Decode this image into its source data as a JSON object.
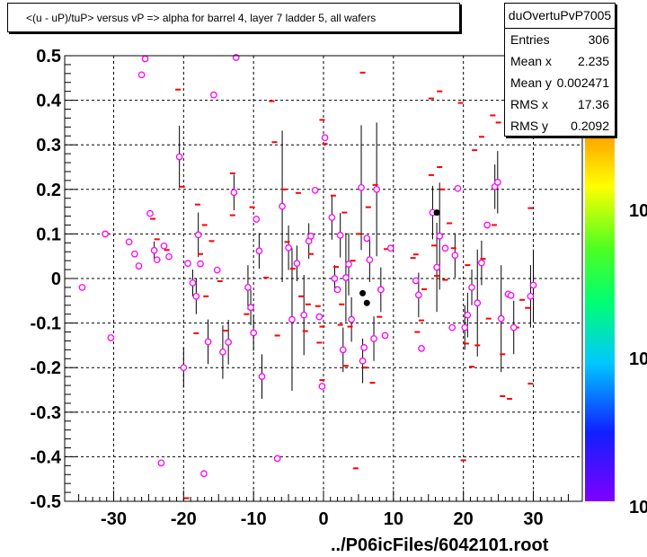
{
  "header": {
    "title": "<(u - uP)/tuP> versus   vP => alpha for barrel 4, layer 7 ladder 5, all wafers"
  },
  "stats": {
    "name": "duOvertuPvP7005",
    "rows": [
      {
        "label": "Entries",
        "value": "306"
      },
      {
        "label": "Mean x",
        "value": "2.235"
      },
      {
        "label": "Mean y",
        "value": "0.002471"
      },
      {
        "label": "RMS x",
        "value": "17.36"
      },
      {
        "label": "RMS y",
        "value": "0.2092"
      }
    ]
  },
  "footer": {
    "text": "../P06icFiles/6042101.root"
  },
  "colorbar": {
    "labels": [
      "10",
      "10",
      "10"
    ]
  },
  "chart_data": {
    "type": "scatter",
    "xlim": [
      -37,
      37
    ],
    "ylim": [
      -0.5,
      0.5
    ],
    "x_ticks": [
      -30,
      -20,
      -10,
      0,
      10,
      20,
      30
    ],
    "x_tick_labels": [
      "-30",
      "-20",
      "-10",
      "0",
      "10",
      "20",
      "30"
    ],
    "y_ticks": [
      -0.5,
      -0.4,
      -0.3,
      -0.2,
      -0.1,
      0,
      0.1,
      0.2,
      0.3,
      0.4,
      0.5
    ],
    "y_tick_labels": [
      "-0.5",
      "-0.4",
      "-0.3",
      "-0.2",
      "-0.1",
      "0",
      "0.1",
      "0.2",
      "0.3",
      "0.4",
      "0.5"
    ],
    "grid": true,
    "excluded_band": [
      -0.375,
      -0.245
    ],
    "colors": {
      "profile": "#ff00ff",
      "bins": "#ff0000",
      "highlight": "#000000",
      "band": "#f0f0f0"
    },
    "profile_points": [
      {
        "x": -34.5,
        "y": -0.02
      },
      {
        "x": -31.2,
        "y": 0.1
      },
      {
        "x": -30.4,
        "y": -0.133
      },
      {
        "x": -27.8,
        "y": 0.082
      },
      {
        "x": -27.0,
        "y": 0.055
      },
      {
        "x": -26.4,
        "y": 0.028
      },
      {
        "x": -26.0,
        "y": 0.457
      },
      {
        "x": -25.5,
        "y": 0.493
      },
      {
        "x": -24.8,
        "y": 0.146
      },
      {
        "x": -24.2,
        "y": 0.063,
        "err": 0.02
      },
      {
        "x": -23.8,
        "y": 0.042
      },
      {
        "x": -23.2,
        "y": -0.414
      },
      {
        "x": -22.8,
        "y": 0.073
      },
      {
        "x": -22.1,
        "y": 0.049
      },
      {
        "x": -20.6,
        "y": 0.273,
        "err": 0.07
      },
      {
        "x": -20.0,
        "y": -0.2,
        "err": 0.045
      },
      {
        "x": -19.4,
        "y": 0.034
      },
      {
        "x": -18.7,
        "y": -0.01,
        "err": 0.03
      },
      {
        "x": -18.2,
        "y": -0.04,
        "err": 0.04
      },
      {
        "x": -17.9,
        "y": 0.098,
        "err": 0.05
      },
      {
        "x": -17.6,
        "y": 0.033
      },
      {
        "x": -17.1,
        "y": -0.438
      },
      {
        "x": -16.5,
        "y": -0.142,
        "err": 0.05
      },
      {
        "x": -15.7,
        "y": 0.412
      },
      {
        "x": -15.2,
        "y": 0.019
      },
      {
        "x": -14.4,
        "y": -0.165,
        "err": 0.06
      },
      {
        "x": -13.6,
        "y": -0.143,
        "err": 0.05
      },
      {
        "x": -12.8,
        "y": 0.193,
        "err": 0.04
      },
      {
        "x": -12.5,
        "y": 0.496
      },
      {
        "x": -10.8,
        "y": -0.02,
        "err": 0.05
      },
      {
        "x": -10.4,
        "y": -0.065,
        "err": 0.04
      },
      {
        "x": -10.0,
        "y": -0.122,
        "err": 0.04
      },
      {
        "x": -9.6,
        "y": 0.133
      },
      {
        "x": -9.2,
        "y": 0.062,
        "err": 0.04
      },
      {
        "x": -8.8,
        "y": -0.22,
        "err": 0.05
      },
      {
        "x": -6.6,
        "y": -0.404
      },
      {
        "x": -5.9,
        "y": 0.162,
        "err": 0.17
      },
      {
        "x": -5.0,
        "y": 0.069,
        "err": 0.05
      },
      {
        "x": -4.5,
        "y": -0.092,
        "err": 0.16
      },
      {
        "x": -3.8,
        "y": 0.034,
        "err": 0.04
      },
      {
        "x": -2.8,
        "y": -0.082,
        "err": 0.09
      },
      {
        "x": -2.1,
        "y": 0.084,
        "err": 0.04
      },
      {
        "x": -1.8,
        "y": 0.095
      },
      {
        "x": -1.2,
        "y": 0.198
      },
      {
        "x": -0.6,
        "y": -0.086
      },
      {
        "x": -0.2,
        "y": -0.242
      },
      {
        "x": 0.2,
        "y": 0.316
      },
      {
        "x": 1.2,
        "y": 0.137,
        "err": 0.05
      },
      {
        "x": 1.6,
        "y": 0.0,
        "err": 0.03
      },
      {
        "x": 2.0,
        "y": -0.025
      },
      {
        "x": 2.4,
        "y": 0.097,
        "err": 0.05
      },
      {
        "x": 2.8,
        "y": -0.16,
        "err": 0.05
      },
      {
        "x": 3.2,
        "y": 0.002,
        "err": 0.1
      },
      {
        "x": 3.6,
        "y": 0.032,
        "err": 0.07
      },
      {
        "x": 4.0,
        "y": -0.092,
        "err": 0.05
      },
      {
        "x": 5.4,
        "y": 0.204,
        "err": 0.14
      },
      {
        "x": 5.6,
        "y": -0.185,
        "err": 0.05
      },
      {
        "x": 5.8,
        "y": -0.155
      },
      {
        "x": 6.2,
        "y": 0.09
      },
      {
        "x": 6.6,
        "y": 0.042,
        "err": 0.05
      },
      {
        "x": 7.2,
        "y": -0.135,
        "err": 0.05
      },
      {
        "x": 7.6,
        "y": 0.2,
        "err": 0.15
      },
      {
        "x": 8.2,
        "y": -0.025,
        "err": 0.05
      },
      {
        "x": 8.8,
        "y": -0.128
      },
      {
        "x": 9.6,
        "y": 0.068
      },
      {
        "x": 13.2,
        "y": -0.005
      },
      {
        "x": 13.6,
        "y": -0.037,
        "err": 0.05
      },
      {
        "x": 14.0,
        "y": -0.157
      },
      {
        "x": 15.6,
        "y": 0.148,
        "err": 0.06
      },
      {
        "x": 16.2,
        "y": 0.025,
        "err": 0.1
      },
      {
        "x": 16.6,
        "y": 0.095,
        "err": 0.12
      },
      {
        "x": 17.4,
        "y": 0.068
      },
      {
        "x": 18.4,
        "y": -0.11
      },
      {
        "x": 18.8,
        "y": 0.052,
        "err": 0.05
      },
      {
        "x": 19.2,
        "y": 0.202
      },
      {
        "x": 20.2,
        "y": -0.11,
        "err": 0.05
      },
      {
        "x": 20.6,
        "y": -0.082,
        "err": 0.05
      },
      {
        "x": 21.2,
        "y": -0.02,
        "err": 0.04
      },
      {
        "x": 22.0,
        "y": -0.055,
        "err": 0.12
      },
      {
        "x": 22.6,
        "y": 0.035,
        "err": 0.05
      },
      {
        "x": 23.4,
        "y": 0.12
      },
      {
        "x": 24.5,
        "y": 0.206,
        "err": 0.05
      },
      {
        "x": 24.9,
        "y": 0.216,
        "err": 0.07
      },
      {
        "x": 25.4,
        "y": -0.09,
        "err": 0.12
      },
      {
        "x": 26.4,
        "y": -0.035
      },
      {
        "x": 26.8,
        "y": -0.038
      },
      {
        "x": 27.2,
        "y": -0.11,
        "err": 0.06
      },
      {
        "x": 27.8,
        "y": 0.33
      },
      {
        "x": 29.6,
        "y": -0.04,
        "err": 0.07
      },
      {
        "x": 30.0,
        "y": -0.015,
        "err": 0.08
      }
    ],
    "highlight_points": [
      {
        "x": 5.6,
        "y": -0.033
      },
      {
        "x": 6.2,
        "y": -0.055
      },
      {
        "x": 16.2,
        "y": 0.148
      }
    ],
    "bin_marks": [
      {
        "x": -20.8,
        "y": 0.424
      },
      {
        "x": -20.2,
        "y": 0.206
      },
      {
        "x": -19.6,
        "y": -0.493
      },
      {
        "x": -24.4,
        "y": 0.134
      },
      {
        "x": -23.8,
        "y": 0.088
      },
      {
        "x": -22.4,
        "y": 0.064
      },
      {
        "x": -18.2,
        "y": -0.123
      },
      {
        "x": -18.0,
        "y": 0.166
      },
      {
        "x": -17.6,
        "y": 0.055
      },
      {
        "x": -17.0,
        "y": 0.12
      },
      {
        "x": -16.8,
        "y": -0.04
      },
      {
        "x": -16.0,
        "y": 0.084
      },
      {
        "x": -14.8,
        "y": -0.006
      },
      {
        "x": -14.0,
        "y": -0.117
      },
      {
        "x": -13.0,
        "y": 0.236
      },
      {
        "x": -13.0,
        "y": 0.142
      },
      {
        "x": -11.0,
        "y": -0.08
      },
      {
        "x": -10.2,
        "y": 0.16
      },
      {
        "x": -8.2,
        "y": 0.002
      },
      {
        "x": -7.4,
        "y": 0.398
      },
      {
        "x": -7.0,
        "y": 0.306
      },
      {
        "x": -6.6,
        "y": -0.128
      },
      {
        "x": -5.6,
        "y": 0.2
      },
      {
        "x": -5.2,
        "y": 0.082
      },
      {
        "x": -4.4,
        "y": 0.022
      },
      {
        "x": -3.6,
        "y": 0.192
      },
      {
        "x": -3.2,
        "y": -0.04
      },
      {
        "x": -2.6,
        "y": -0.118
      },
      {
        "x": -2.2,
        "y": -0.058
      },
      {
        "x": -1.8,
        "y": 0.055
      },
      {
        "x": -0.8,
        "y": -0.062
      },
      {
        "x": -0.6,
        "y": -0.144
      },
      {
        "x": -0.2,
        "y": -0.228
      },
      {
        "x": -0.2,
        "y": -0.108
      },
      {
        "x": 0.2,
        "y": 0.302
      },
      {
        "x": -0.2,
        "y": 0.356
      },
      {
        "x": 1.4,
        "y": 0.186
      },
      {
        "x": 1.8,
        "y": 0.026
      },
      {
        "x": 2.4,
        "y": -0.104
      },
      {
        "x": 2.6,
        "y": -0.058
      },
      {
        "x": 3.0,
        "y": 0.148
      },
      {
        "x": 3.2,
        "y": -0.196
      },
      {
        "x": 3.8,
        "y": -0.108
      },
      {
        "x": 4.2,
        "y": 0.04
      },
      {
        "x": 4.6,
        "y": -0.426
      },
      {
        "x": 5.0,
        "y": 0.1
      },
      {
        "x": 5.6,
        "y": 0.462
      },
      {
        "x": 6.0,
        "y": -0.2
      },
      {
        "x": 6.4,
        "y": 0.16
      },
      {
        "x": 7.0,
        "y": -0.234
      },
      {
        "x": 7.4,
        "y": 0.21
      },
      {
        "x": 8.0,
        "y": -0.086
      },
      {
        "x": 9.0,
        "y": 0.066
      },
      {
        "x": 13.2,
        "y": 0.054
      },
      {
        "x": 13.4,
        "y": -0.12
      },
      {
        "x": 14.0,
        "y": -0.094
      },
      {
        "x": 15.4,
        "y": 0.232
      },
      {
        "x": 15.8,
        "y": 0.074
      },
      {
        "x": 16.2,
        "y": 0.006
      },
      {
        "x": 16.6,
        "y": 0.25
      },
      {
        "x": 17.0,
        "y": 0.2
      },
      {
        "x": 17.4,
        "y": -0.003
      },
      {
        "x": 18.0,
        "y": 0.124
      },
      {
        "x": 18.6,
        "y": 0.068
      },
      {
        "x": 19.6,
        "y": 0.394
      },
      {
        "x": 20.4,
        "y": -0.146
      },
      {
        "x": 20.6,
        "y": 0.03
      },
      {
        "x": 21.2,
        "y": -0.198
      },
      {
        "x": 21.6,
        "y": 0.288
      },
      {
        "x": 22.0,
        "y": -0.15
      },
      {
        "x": 22.8,
        "y": 0.044
      },
      {
        "x": 23.6,
        "y": -0.09
      },
      {
        "x": 24.2,
        "y": 0.366
      },
      {
        "x": 24.4,
        "y": 0.12
      },
      {
        "x": 25.0,
        "y": 0.35
      },
      {
        "x": 25.6,
        "y": -0.17
      },
      {
        "x": 26.6,
        "y": -0.27
      },
      {
        "x": 27.6,
        "y": -0.11
      },
      {
        "x": 28.4,
        "y": -0.048
      },
      {
        "x": 29.2,
        "y": -0.066
      },
      {
        "x": 29.6,
        "y": -0.236
      },
      {
        "x": 29.6,
        "y": 0.158
      },
      {
        "x": 27.0,
        "y": 0.326
      },
      {
        "x": 25.6,
        "y": -0.264
      },
      {
        "x": 22.6,
        "y": 0.318
      },
      {
        "x": 16.6,
        "y": 0.42
      },
      {
        "x": 15.4,
        "y": 0.404
      },
      {
        "x": 20.0,
        "y": -0.408
      },
      {
        "x": 14.4,
        "y": -0.024
      },
      {
        "x": 12.8,
        "y": 0.046
      }
    ]
  }
}
